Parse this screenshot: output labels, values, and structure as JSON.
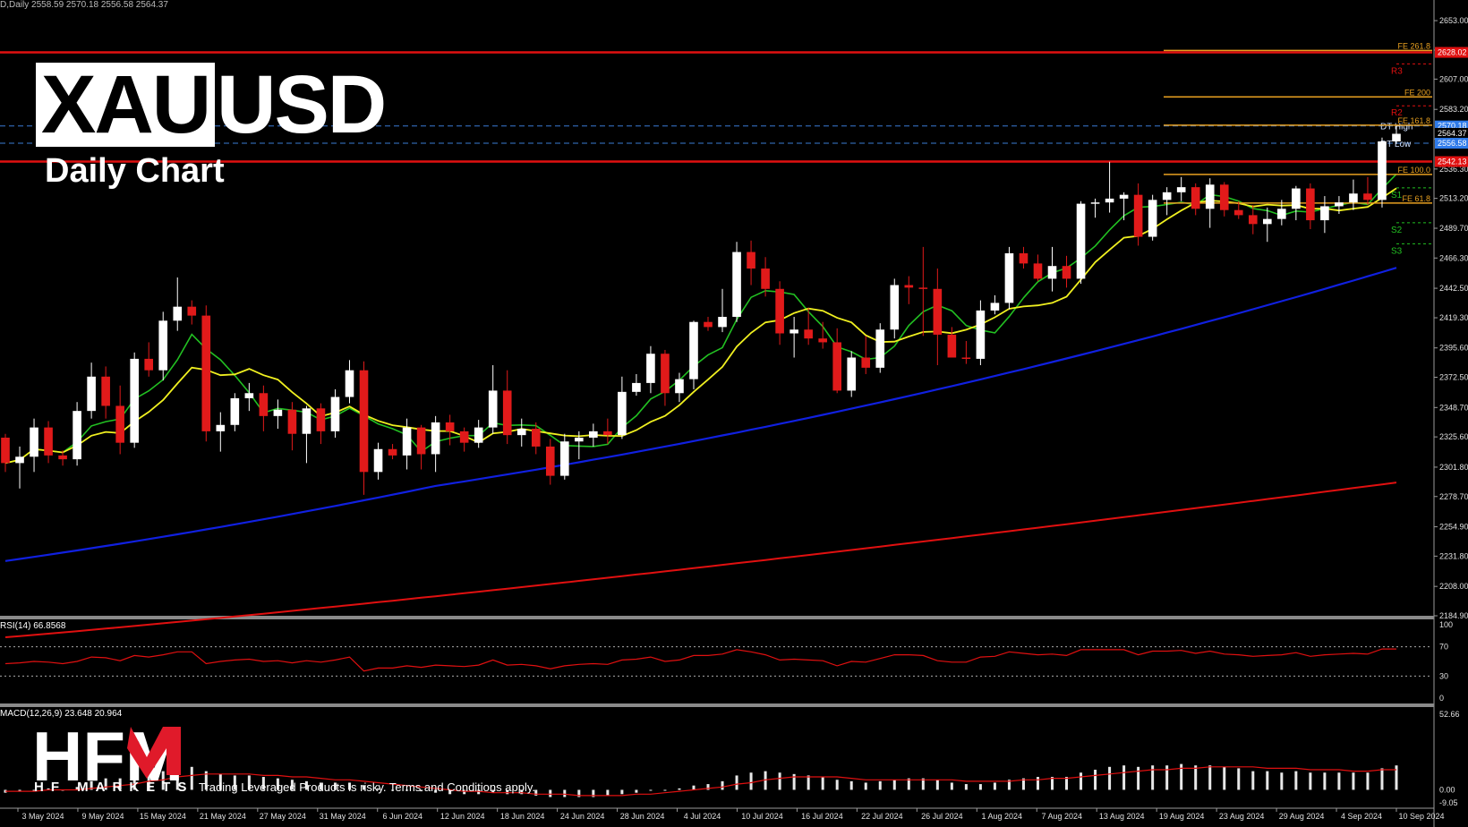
{
  "header": {
    "symbol_first": "XAU",
    "symbol_rest": "USD",
    "subtitle": "Daily Chart",
    "top_text": "D,Daily  2558.59 2570.18 2556.58 2564.37"
  },
  "branding": {
    "logo_text": "HFM",
    "tagline": "HF MARKETS",
    "disclaimer": "Trading Leveraged Products is risky. Terms and Conditions apply."
  },
  "indicators": {
    "rsi_label": "RSI(14) 66.8568",
    "macd_label": "MACD(12,26,9) 23.648 20.964",
    "rsi_levels": [
      "100",
      "70",
      "30",
      "0"
    ],
    "macd_levels": [
      "52.66",
      "0.00",
      "-9.05"
    ]
  },
  "colors": {
    "bull": "#ffffff",
    "bear": "#e11a1a",
    "ma_fast": "#22c022",
    "ma_mid": "#f0f020",
    "ma_slow": "#1020e0",
    "ma_long": "#e01010",
    "fe": "#e8a020",
    "pivot_line": "#e01010",
    "dt_line": "#3a7bd5"
  },
  "chart_data": {
    "type": "candlestick",
    "symbol": "XAUUSD",
    "timeframe": "Daily",
    "y_ticks": [
      2653.0,
      2629.8,
      2607.0,
      2583.2,
      2560.0,
      2536.3,
      2513.2,
      2489.7,
      2466.3,
      2442.5,
      2419.3,
      2395.6,
      2372.5,
      2348.7,
      2325.6,
      2301.8,
      2278.7,
      2254.9,
      2231.8,
      2208.0,
      2184.9
    ],
    "ylim": [
      2184.9,
      2665
    ],
    "x_tick_labels": [
      "3 May 2024",
      "9 May 2024",
      "15 May 2024",
      "21 May 2024",
      "27 May 2024",
      "31 May 2024",
      "6 Jun 2024",
      "12 Jun 2024",
      "18 Jun 2024",
      "24 Jun 2024",
      "28 Jun 2024",
      "4 Jul 2024",
      "10 Jul 2024",
      "16 Jul 2024",
      "22 Jul 2024",
      "26 Jul 2024",
      "1 Aug 2024",
      "7 Aug 2024",
      "13 Aug 2024",
      "19 Aug 2024",
      "23 Aug 2024",
      "29 Aug 2024",
      "4 Sep 2024",
      "10 Sep 2024"
    ],
    "price_tags": [
      {
        "text": "2628.02",
        "value": 2628.02,
        "bg": "#e01010"
      },
      {
        "text": "2570.18",
        "value": 2570.18,
        "bg": "#2f7bea"
      },
      {
        "text": "2564.37",
        "value": 2564.37,
        "bg": "#000000"
      },
      {
        "text": "2556.58",
        "value": 2556.58,
        "bg": "#2f7bea"
      },
      {
        "text": "2542.13",
        "value": 2542.13,
        "bg": "#e01010"
      }
    ],
    "fe_levels": [
      {
        "label": "FE 261.8",
        "value": 2629.5
      },
      {
        "label": "FE 200",
        "value": 2593.0
      },
      {
        "label": "FE 161.8",
        "value": 2570.8
      },
      {
        "label": "FE 100.0",
        "value": 2532.0
      },
      {
        "label": "FE 61.8",
        "value": 2509.5
      }
    ],
    "pivots": [
      {
        "label": "R3",
        "value": 2619.0,
        "color": "#e01010"
      },
      {
        "label": "R2",
        "value": 2586.0,
        "color": "#e01010"
      },
      {
        "label": "S1",
        "value": 2521.5,
        "color": "#22c022"
      },
      {
        "label": "S2",
        "value": 2494.0,
        "color": "#22c022"
      },
      {
        "label": "S3",
        "value": 2477.5,
        "color": "#22c022"
      }
    ],
    "dt_labels": [
      {
        "label": "DT High",
        "value": 2570.18
      },
      {
        "label": "DT Low",
        "value": 2556.58
      }
    ],
    "red_levels": [
      2628.02,
      2542.13
    ],
    "candles": [
      [
        2325,
        2328,
        2298,
        2305
      ],
      [
        2305,
        2318,
        2285,
        2310
      ],
      [
        2310,
        2340,
        2298,
        2333
      ],
      [
        2333,
        2338,
        2305,
        2311
      ],
      [
        2311,
        2315,
        2303,
        2308
      ],
      [
        2308,
        2353,
        2303,
        2346
      ],
      [
        2346,
        2384,
        2340,
        2373
      ],
      [
        2373,
        2381,
        2340,
        2350
      ],
      [
        2350,
        2366,
        2312,
        2321
      ],
      [
        2321,
        2392,
        2317,
        2387
      ],
      [
        2387,
        2400,
        2373,
        2378
      ],
      [
        2378,
        2424,
        2370,
        2417
      ],
      [
        2417,
        2451,
        2409,
        2428
      ],
      [
        2428,
        2433,
        2414,
        2421
      ],
      [
        2421,
        2429,
        2322,
        2330
      ],
      [
        2330,
        2345,
        2314,
        2335
      ],
      [
        2335,
        2360,
        2330,
        2356
      ],
      [
        2356,
        2368,
        2346,
        2360
      ],
      [
        2360,
        2366,
        2330,
        2342
      ],
      [
        2342,
        2355,
        2332,
        2347
      ],
      [
        2347,
        2353,
        2315,
        2328
      ],
      [
        2328,
        2350,
        2305,
        2348
      ],
      [
        2348,
        2352,
        2320,
        2330
      ],
      [
        2330,
        2363,
        2325,
        2357
      ],
      [
        2357,
        2386,
        2352,
        2378
      ],
      [
        2378,
        2385,
        2280,
        2298
      ],
      [
        2298,
        2321,
        2292,
        2316
      ],
      [
        2316,
        2320,
        2308,
        2311
      ],
      [
        2311,
        2340,
        2300,
        2333
      ],
      [
        2333,
        2335,
        2300,
        2312
      ],
      [
        2312,
        2342,
        2298,
        2337
      ],
      [
        2337,
        2343,
        2319,
        2330
      ],
      [
        2330,
        2333,
        2314,
        2321
      ],
      [
        2321,
        2339,
        2317,
        2333
      ],
      [
        2333,
        2382,
        2328,
        2362
      ],
      [
        2362,
        2378,
        2320,
        2327
      ],
      [
        2327,
        2340,
        2318,
        2332
      ],
      [
        2332,
        2337,
        2312,
        2318
      ],
      [
        2318,
        2324,
        2288,
        2295
      ],
      [
        2295,
        2328,
        2292,
        2322
      ],
      [
        2322,
        2330,
        2308,
        2325
      ],
      [
        2325,
        2336,
        2318,
        2330
      ],
      [
        2330,
        2340,
        2320,
        2327
      ],
      [
        2327,
        2373,
        2324,
        2361
      ],
      [
        2361,
        2375,
        2358,
        2368
      ],
      [
        2368,
        2397,
        2360,
        2391
      ],
      [
        2391,
        2394,
        2350,
        2360
      ],
      [
        2360,
        2376,
        2353,
        2371
      ],
      [
        2371,
        2417,
        2363,
        2416
      ],
      [
        2416,
        2420,
        2409,
        2412
      ],
      [
        2412,
        2442,
        2408,
        2420
      ],
      [
        2420,
        2479,
        2416,
        2471
      ],
      [
        2471,
        2480,
        2445,
        2458
      ],
      [
        2458,
        2467,
        2436,
        2442
      ],
      [
        2442,
        2448,
        2398,
        2407
      ],
      [
        2407,
        2420,
        2388,
        2410
      ],
      [
        2410,
        2427,
        2398,
        2403
      ],
      [
        2403,
        2416,
        2395,
        2400
      ],
      [
        2400,
        2411,
        2360,
        2362
      ],
      [
        2362,
        2393,
        2357,
        2388
      ],
      [
        2388,
        2405,
        2375,
        2380
      ],
      [
        2380,
        2415,
        2376,
        2410
      ],
      [
        2410,
        2450,
        2403,
        2445
      ],
      [
        2445,
        2452,
        2430,
        2443
      ],
      [
        2443,
        2475,
        2405,
        2442
      ],
      [
        2442,
        2458,
        2382,
        2406
      ],
      [
        2406,
        2412,
        2392,
        2388
      ],
      [
        2388,
        2401,
        2383,
        2387
      ],
      [
        2387,
        2433,
        2382,
        2425
      ],
      [
        2425,
        2437,
        2422,
        2431
      ],
      [
        2431,
        2475,
        2426,
        2470
      ],
      [
        2470,
        2475,
        2458,
        2462
      ],
      [
        2462,
        2469,
        2448,
        2450
      ],
      [
        2450,
        2475,
        2440,
        2460
      ],
      [
        2460,
        2468,
        2443,
        2450
      ],
      [
        2450,
        2511,
        2446,
        2509
      ],
      [
        2509,
        2513,
        2498,
        2510
      ],
      [
        2510,
        2542,
        2502,
        2513
      ],
      [
        2513,
        2518,
        2496,
        2516
      ],
      [
        2516,
        2525,
        2476,
        2483
      ],
      [
        2483,
        2516,
        2480,
        2512
      ],
      [
        2512,
        2522,
        2500,
        2518
      ],
      [
        2518,
        2530,
        2511,
        2522
      ],
      [
        2522,
        2525,
        2500,
        2505
      ],
      [
        2505,
        2529,
        2490,
        2524
      ],
      [
        2524,
        2526,
        2499,
        2504
      ],
      [
        2504,
        2511,
        2497,
        2500
      ],
      [
        2500,
        2508,
        2485,
        2493
      ],
      [
        2493,
        2506,
        2479,
        2497
      ],
      [
        2497,
        2512,
        2492,
        2505
      ],
      [
        2505,
        2523,
        2496,
        2521
      ],
      [
        2521,
        2525,
        2489,
        2496
      ],
      [
        2496,
        2515,
        2486,
        2507
      ],
      [
        2507,
        2515,
        2501,
        2510
      ],
      [
        2510,
        2528,
        2504,
        2517
      ],
      [
        2517,
        2530,
        2508,
        2512
      ],
      [
        2512,
        2561,
        2506,
        2558
      ],
      [
        2558,
        2570,
        2556,
        2564
      ]
    ],
    "rsi_values": [
      47,
      48,
      50,
      49,
      47,
      50,
      56,
      55,
      51,
      58,
      56,
      59,
      63,
      63,
      47,
      50,
      52,
      53,
      50,
      51,
      48,
      51,
      49,
      52,
      56,
      37,
      41,
      41,
      44,
      42,
      45,
      44,
      43,
      45,
      52,
      45,
      46,
      44,
      40,
      44,
      46,
      47,
      46,
      52,
      53,
      56,
      50,
      52,
      58,
      58,
      60,
      66,
      63,
      59,
      52,
      53,
      52,
      51,
      44,
      50,
      49,
      54,
      59,
      59,
      58,
      51,
      49,
      49,
      56,
      57,
      63,
      61,
      59,
      60,
      58,
      66,
      66,
      66,
      66,
      59,
      64,
      64,
      65,
      61,
      64,
      60,
      59,
      57,
      58,
      59,
      62,
      57,
      59,
      60,
      61,
      60,
      67,
      67
    ],
    "macd_hist": [
      -2,
      -1,
      0,
      1,
      0,
      2,
      6,
      8,
      8,
      10,
      11,
      13,
      15,
      16,
      13,
      11,
      10,
      10,
      9,
      8,
      7,
      6,
      5,
      5,
      5,
      3,
      1,
      0,
      0,
      -1,
      -2,
      -3,
      -3,
      -3,
      -2,
      -3,
      -3,
      -4,
      -5,
      -5,
      -5,
      -5,
      -4,
      -3,
      -2,
      0,
      0,
      1,
      3,
      4,
      6,
      10,
      12,
      13,
      12,
      11,
      10,
      9,
      7,
      6,
      5,
      6,
      7,
      8,
      8,
      7,
      5,
      4,
      4,
      5,
      7,
      8,
      9,
      9,
      9,
      12,
      14,
      16,
      17,
      16,
      17,
      17,
      18,
      17,
      17,
      16,
      15,
      13,
      13,
      12,
      13,
      12,
      12,
      12,
      12,
      12,
      15,
      17
    ],
    "macd_signal": [
      -1,
      -1,
      -1,
      0,
      0,
      0,
      1,
      2,
      3,
      4,
      6,
      7,
      9,
      10,
      11,
      11,
      11,
      11,
      10,
      10,
      9,
      9,
      8,
      7,
      7,
      6,
      5,
      4,
      3,
      2,
      1,
      0,
      -1,
      -1,
      -2,
      -2,
      -2,
      -3,
      -3,
      -3,
      -4,
      -4,
      -4,
      -4,
      -3,
      -3,
      -2,
      -1,
      0,
      1,
      2,
      4,
      5,
      7,
      8,
      9,
      9,
      9,
      9,
      8,
      7,
      7,
      7,
      7,
      7,
      7,
      7,
      6,
      6,
      6,
      6,
      7,
      7,
      8,
      8,
      9,
      10,
      11,
      12,
      13,
      14,
      14,
      15,
      15,
      16,
      16,
      16,
      16,
      15,
      15,
      15,
      14,
      14,
      14,
      13,
      13,
      14,
      14
    ]
  }
}
